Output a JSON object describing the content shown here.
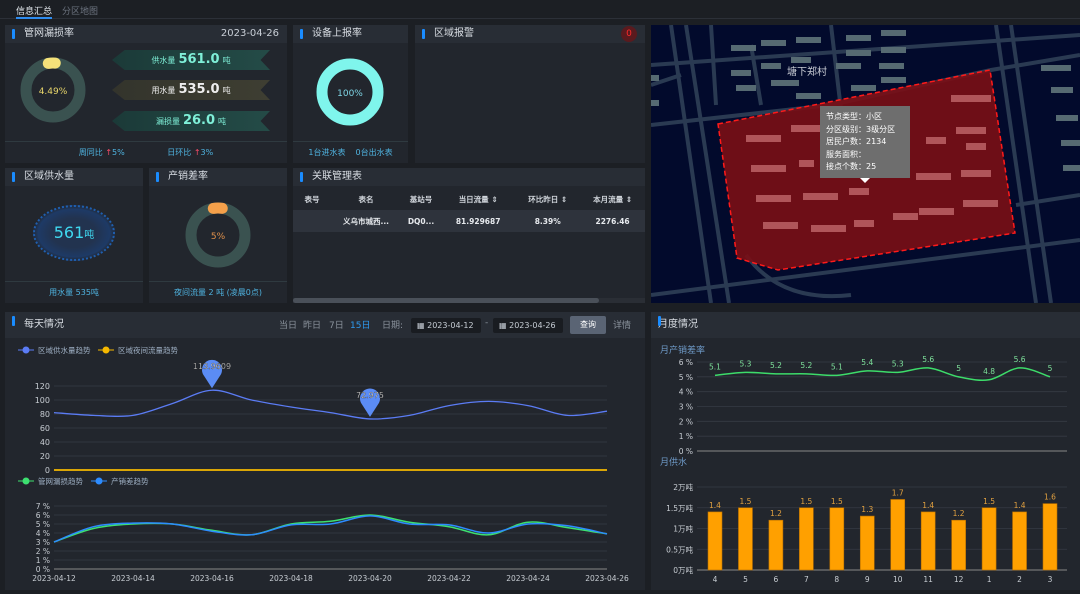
{
  "tabs": [
    {
      "label": "信息汇总",
      "active": true
    },
    {
      "label": "分区地图",
      "active": false
    }
  ],
  "leak": {
    "title": "管网漏损率",
    "date": "2023-04-26",
    "rate": "4.49%",
    "rate_value": 4.49,
    "supply_label": "供水量",
    "supply_value": "561.0",
    "use_label": "用水量",
    "use_value": "535.0",
    "loss_label": "漏损量",
    "loss_value": "26.0",
    "unit": "吨",
    "week_label": "周同比",
    "week_value": "5%",
    "day_label": "日环比",
    "day_value": "3%"
  },
  "device": {
    "title": "设备上报率",
    "rate": "100%",
    "rate_value": 100,
    "in_meters": "1台进水表",
    "out_meters": "0台出水表"
  },
  "alarm": {
    "title": "区域报警",
    "count": "0"
  },
  "area_supply": {
    "title": "区域供水量",
    "value": "561",
    "unit": "吨",
    "footer": "用水量 535吨"
  },
  "nrw": {
    "title": "产销差率",
    "rate": "5%",
    "rate_value": 5,
    "footer": "夜间流量 2 吨 (凌晨0点)"
  },
  "table": {
    "title": "关联管理表",
    "columns": [
      "表号",
      "表名",
      "基站号",
      "当日流量",
      "环比昨日",
      "本月流量"
    ],
    "rows": [
      [
        "",
        "义乌市城西...",
        "DQ0...",
        "81.929687",
        "8.39%",
        "2276.46"
      ]
    ]
  },
  "map": {
    "place_label": "塘下郑村",
    "tooltip": [
      "节点类型：小区",
      "分区级别：3级分区",
      "居民户数：2134",
      "服务面积：",
      "接点个数：25"
    ]
  },
  "daily": {
    "title": "每天情况",
    "ranges": [
      "当日",
      "昨日",
      "7日",
      "15日"
    ],
    "active_range": "15日",
    "date_label": "日期:",
    "start": "2023-04-12",
    "end": "2023-04-26",
    "separator": "-",
    "query": "查询",
    "detail": "详情"
  },
  "monthly": {
    "title": "月度情况"
  },
  "colors": {
    "accent": "#1a8cff",
    "supply": "#5b7cf5",
    "night": "#f5b800",
    "leak": "#3de070",
    "nrw": "#2d8cff",
    "bar": "#ffa000",
    "rate": "#3ddc6a"
  },
  "chart_data": [
    {
      "type": "line",
      "x": [
        "2023-04-12",
        "2023-04-13",
        "2023-04-14",
        "2023-04-15",
        "2023-04-16",
        "2023-04-17",
        "2023-04-18",
        "2023-04-19",
        "2023-04-20",
        "2023-04-21",
        "2023-04-22",
        "2023-04-23",
        "2023-04-24",
        "2023-04-25",
        "2023-04-26"
      ],
      "series": [
        {
          "name": "区域供水量趋势",
          "values": [
            82,
            78,
            78,
            95,
            113.9609,
            100,
            90,
            82,
            72.975,
            78,
            92,
            98,
            92,
            78,
            84
          ],
          "markers": [
            "113.9609",
            "72.975"
          ]
        },
        {
          "name": "区域夜间流量趋势",
          "values": [
            0,
            0,
            0,
            0,
            0,
            0,
            0,
            0,
            0,
            0,
            0,
            0,
            0,
            0,
            0
          ]
        }
      ],
      "yticks": [
        "0",
        "20",
        "40",
        "60",
        "80",
        "100",
        "120"
      ],
      "ylim": [
        0,
        120
      ],
      "grid": true,
      "legend": "top-left"
    },
    {
      "type": "line",
      "x": [
        "2023-04-12",
        "2023-04-13",
        "2023-04-14",
        "2023-04-15",
        "2023-04-16",
        "2023-04-17",
        "2023-04-18",
        "2023-04-19",
        "2023-04-20",
        "2023-04-21",
        "2023-04-22",
        "2023-04-23",
        "2023-04-24",
        "2023-04-25",
        "2023-04-26"
      ],
      "xticks": [
        "2023-04-12",
        "2023-04-14",
        "2023-04-16",
        "2023-04-18",
        "2023-04-20",
        "2023-04-22",
        "2023-04-24",
        "2023-04-26"
      ],
      "series": [
        {
          "name": "管网漏损趋势",
          "values": [
            3,
            4.5,
            5.0,
            5.0,
            4.3,
            3.8,
            5.0,
            5.3,
            6.0,
            5.2,
            4.7,
            3.8,
            5.2,
            4.6,
            3.9
          ]
        },
        {
          "name": "产销差趋势",
          "values": [
            3,
            4.7,
            5.1,
            5.0,
            4.2,
            3.8,
            4.9,
            5.0,
            5.9,
            5.0,
            4.9,
            4.0,
            5.0,
            4.8,
            3.9
          ]
        }
      ],
      "yticks": [
        "0 %",
        "1 %",
        "2 %",
        "3 %",
        "4 %",
        "5 %",
        "6 %",
        "7 %"
      ],
      "ylim": [
        0,
        7
      ],
      "grid": true,
      "legend": "top-left"
    },
    {
      "type": "line",
      "title": "月产销差率",
      "categories": [
        "4",
        "5",
        "6",
        "7",
        "8",
        "9",
        "10",
        "11",
        "12",
        "1",
        "2",
        "3"
      ],
      "values": [
        5.1,
        5.3,
        5.2,
        5.2,
        5.1,
        5.4,
        5.3,
        5.6,
        5,
        4.8,
        5.6,
        5
      ],
      "labels": [
        "5.1",
        "5.3",
        "5.2",
        "5.2",
        "5.1",
        "5.4",
        "5.3",
        "5.6",
        "5",
        "4.8",
        "5.6",
        "5"
      ],
      "yticks": [
        "0 %",
        "1 %",
        "2 %",
        "3 %",
        "4 %",
        "5 %",
        "6 %"
      ],
      "ylim": [
        0,
        6
      ],
      "grid": true
    },
    {
      "type": "bar",
      "title": "月供水",
      "categories": [
        "4",
        "5",
        "6",
        "7",
        "8",
        "9",
        "10",
        "11",
        "12",
        "1",
        "2",
        "3"
      ],
      "values": [
        1.4,
        1.5,
        1.2,
        1.5,
        1.5,
        1.3,
        1.7,
        1.4,
        1.2,
        1.5,
        1.4,
        1.6
      ],
      "labels": [
        "1.4",
        "1.5",
        "1.2",
        "1.5",
        "1.5",
        "1.3",
        "1.7",
        "1.4",
        "1.2",
        "1.5",
        "1.4",
        "1.6"
      ],
      "yticks": [
        "0万吨",
        "0.5万吨",
        "1万吨",
        "1.5万吨",
        "2万吨"
      ],
      "ylim": [
        0,
        2
      ],
      "grid": true
    }
  ]
}
